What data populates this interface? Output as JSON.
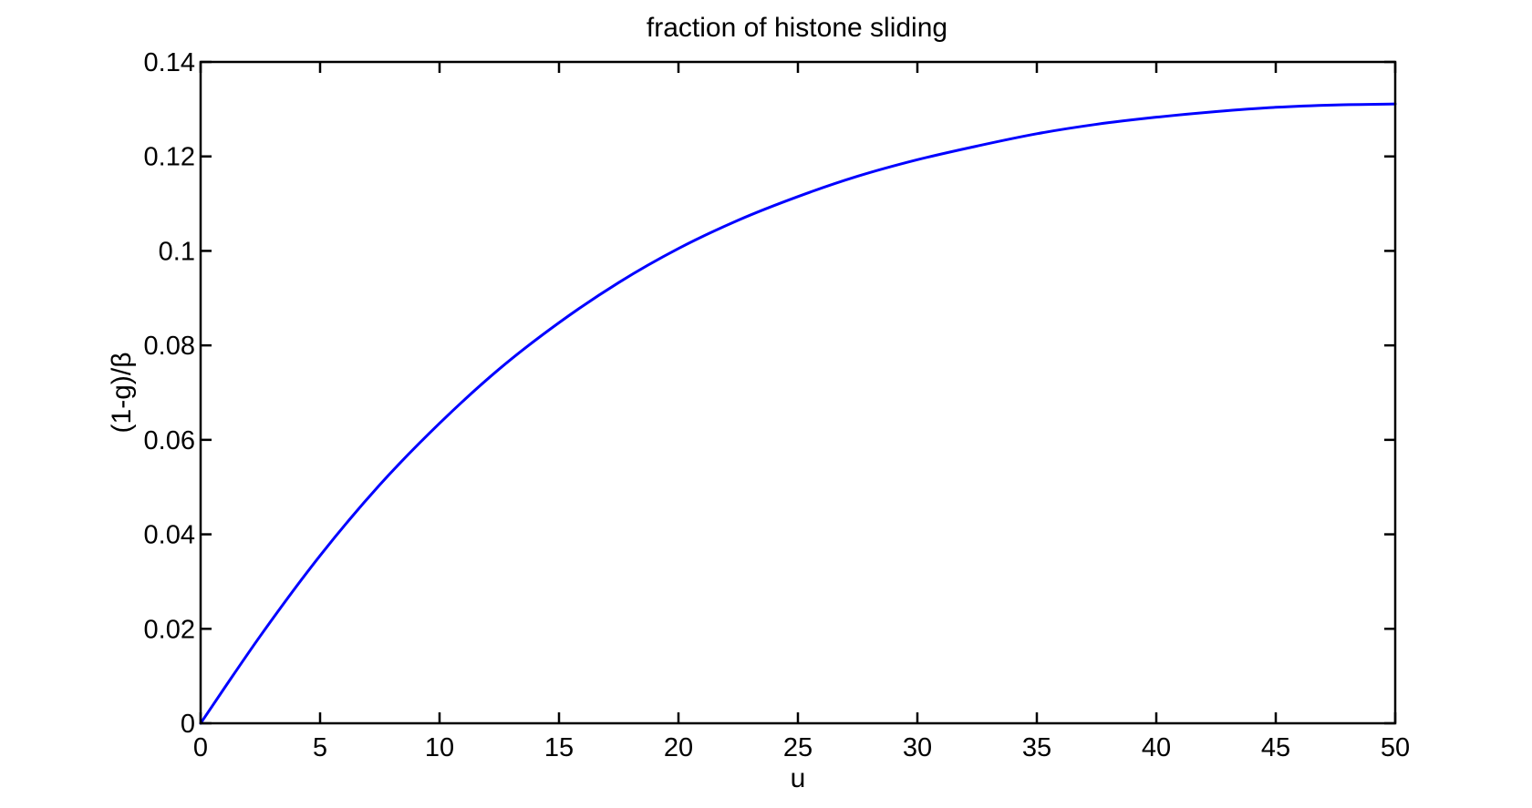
{
  "chart_data": {
    "type": "line",
    "title": "fraction of histone sliding",
    "xlabel": "u",
    "ylabel": "(1-g)/β",
    "xlim": [
      0,
      50
    ],
    "ylim": [
      0,
      0.14
    ],
    "x_ticks": [
      0,
      5,
      10,
      15,
      20,
      25,
      30,
      35,
      40,
      45,
      50
    ],
    "x_tick_labels": [
      "0",
      "5",
      "10",
      "15",
      "20",
      "25",
      "30",
      "35",
      "40",
      "45",
      "50"
    ],
    "y_ticks": [
      0,
      0.02,
      0.04,
      0.06,
      0.08,
      0.1,
      0.12,
      0.14
    ],
    "y_tick_labels": [
      "0",
      "0.02",
      "0.04",
      "0.06",
      "0.08",
      "0.1",
      "0.12",
      "0.14"
    ],
    "grid": false,
    "series": [
      {
        "color": "#0000ff",
        "x": [
          0,
          2.5,
          5,
          7.5,
          10,
          12.5,
          15,
          17.5,
          20,
          22.5,
          25,
          27.5,
          30,
          32.5,
          35,
          37.5,
          40,
          42.5,
          45,
          47.5,
          50
        ],
        "y": [
          0,
          0.0185,
          0.0355,
          0.0505,
          0.0635,
          0.075,
          0.0848,
          0.0933,
          0.1005,
          0.1065,
          0.1115,
          0.1158,
          0.1193,
          0.1222,
          0.1248,
          0.1268,
          0.1283,
          0.1295,
          0.1304,
          0.1309,
          0.1311
        ]
      }
    ]
  }
}
